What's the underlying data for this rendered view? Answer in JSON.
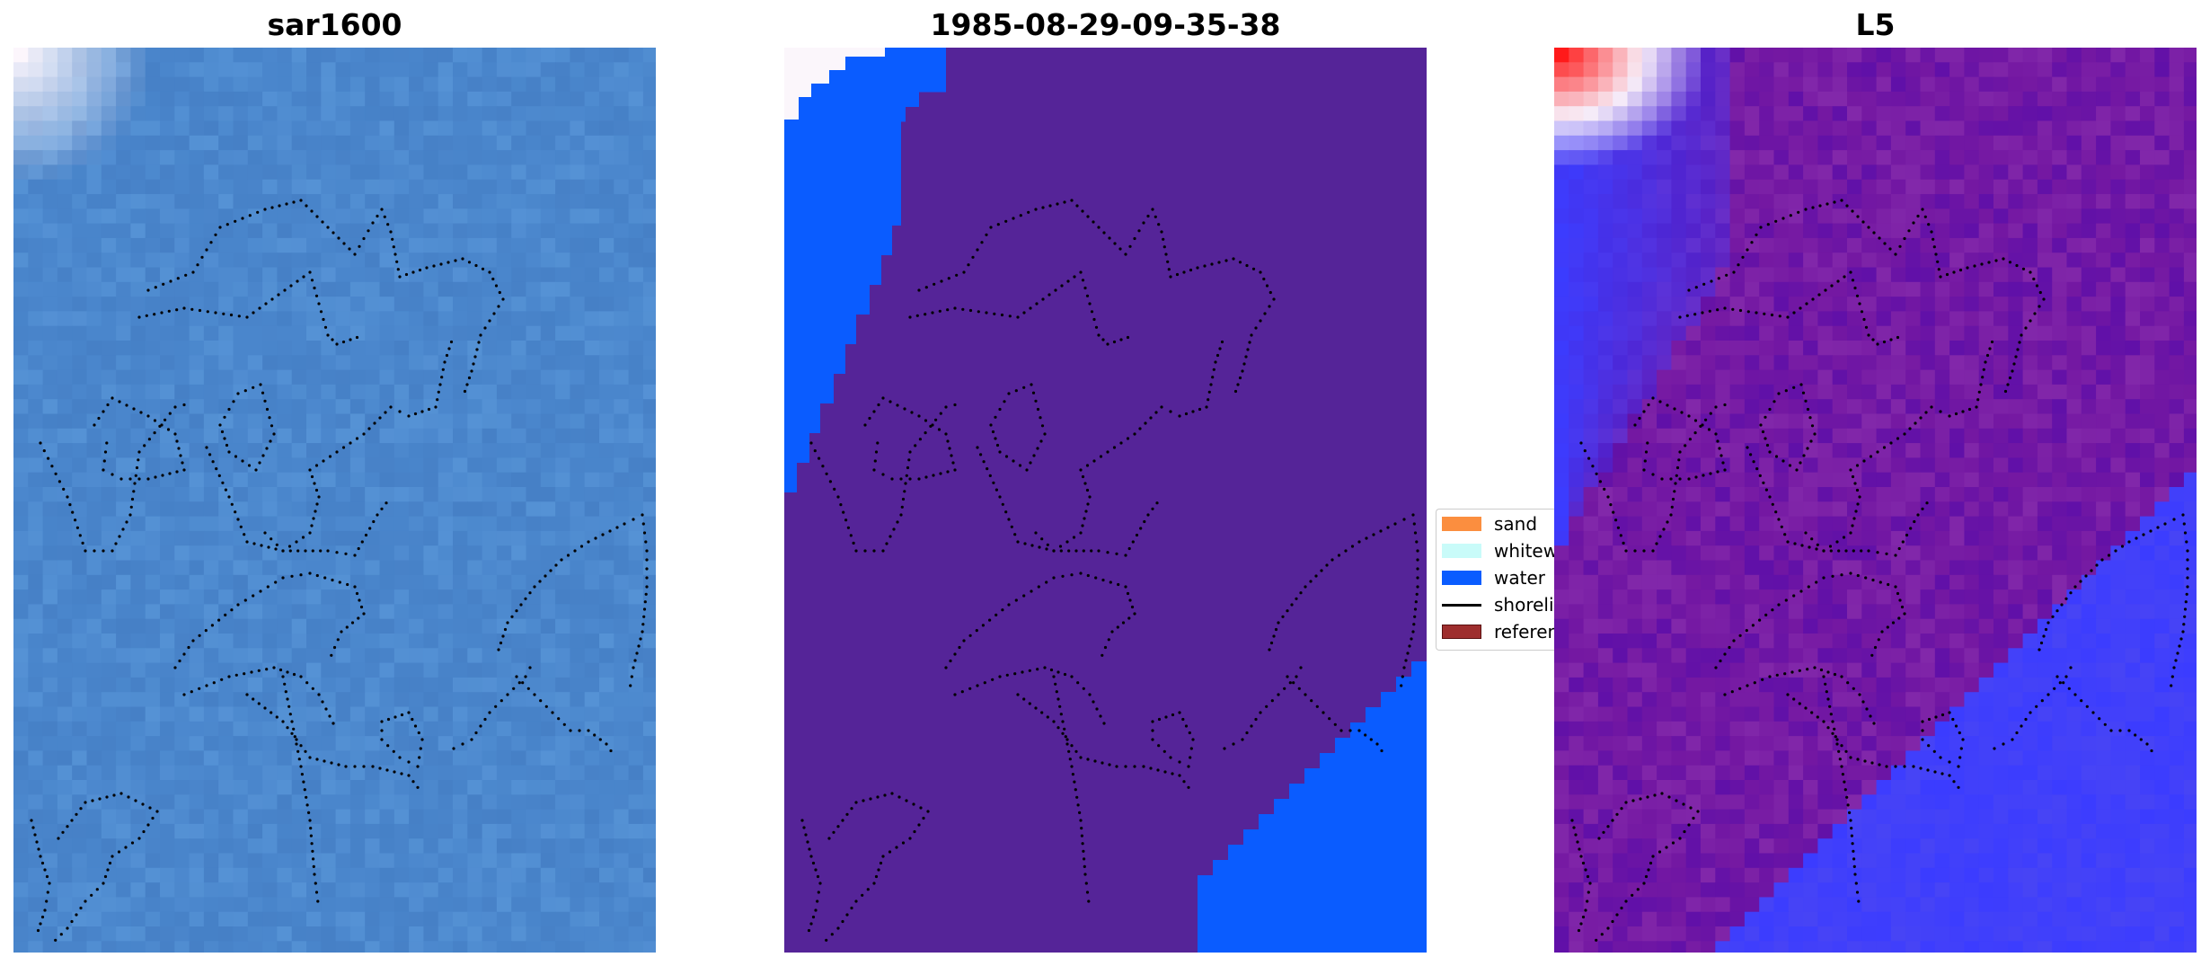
{
  "panels": [
    {
      "title": "sar1600",
      "style": "sar"
    },
    {
      "title": "1985-08-29-09-35-38",
      "style": "classified"
    },
    {
      "title": "L5",
      "style": "index"
    }
  ],
  "legend": {
    "items": [
      {
        "label": "sand",
        "color": "#fb8e3f",
        "kind": "patch"
      },
      {
        "label": "whitewater",
        "color": "#c9fbf9",
        "kind": "patch"
      },
      {
        "label": "water",
        "color": "#0a5cff",
        "kind": "patch"
      },
      {
        "label": "shoreline",
        "color": "#000000",
        "kind": "line"
      },
      {
        "label": "reference",
        "color": "#9e2e2e",
        "kind": "patch"
      }
    ]
  },
  "colors": {
    "sar_base": "#4a86cc",
    "classified_land": "#552498",
    "classified_water": "#0a5cff",
    "classified_whitewater": "#fbf6fb",
    "index_base": "#7418a2",
    "index_blue": "#3b3cff",
    "index_red": "#ff1a1a",
    "shoreline_dots": "#000000"
  }
}
